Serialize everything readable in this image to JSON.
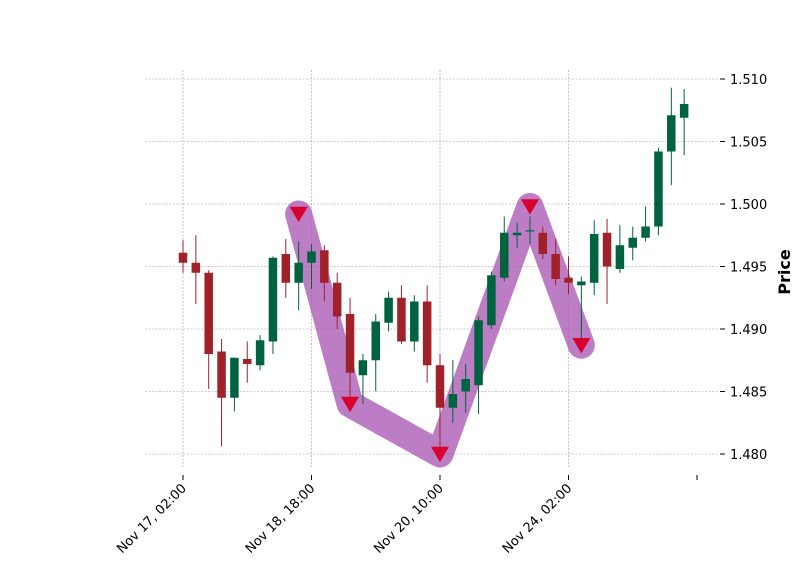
{
  "chart_data": {
    "type": "candlestick",
    "ylabel": "Price",
    "ylim": [
      1.4785,
      1.5105
    ],
    "grid": true,
    "y_axis_side": "right",
    "y_ticks": [
      {
        "value": 1.48,
        "label": "1.480"
      },
      {
        "value": 1.485,
        "label": "1.485"
      },
      {
        "value": 1.49,
        "label": "1.490"
      },
      {
        "value": 1.495,
        "label": "1.495"
      },
      {
        "value": 1.5,
        "label": "1.500"
      },
      {
        "value": 1.505,
        "label": "1.505"
      },
      {
        "value": 1.51,
        "label": "1.510"
      }
    ],
    "x_ticks": [
      {
        "index": 0,
        "label": "Nov 17, 02:00"
      },
      {
        "index": 10,
        "label": "Nov 18, 18:00"
      },
      {
        "index": 20,
        "label": "Nov 20, 10:00"
      },
      {
        "index": 30,
        "label": "Nov 24, 02:00"
      },
      {
        "index": 40,
        "label": ""
      }
    ],
    "colors": {
      "up": "#006340",
      "down": "#A02128",
      "band": "#A552B2",
      "marker": "#D8002C",
      "grid": "#999999"
    },
    "candles": [
      {
        "o": 1.4961,
        "h": 1.4971,
        "l": 1.4945,
        "c": 1.4953
      },
      {
        "o": 1.4953,
        "h": 1.4975,
        "l": 1.492,
        "c": 1.4945
      },
      {
        "o": 1.4945,
        "h": 1.4947,
        "l": 1.4852,
        "c": 1.488
      },
      {
        "o": 1.4882,
        "h": 1.4892,
        "l": 1.4806,
        "c": 1.4845
      },
      {
        "o": 1.4845,
        "h": 1.4877,
        "l": 1.4834,
        "c": 1.4877
      },
      {
        "o": 1.4876,
        "h": 1.489,
        "l": 1.4857,
        "c": 1.4872
      },
      {
        "o": 1.4871,
        "h": 1.4895,
        "l": 1.4867,
        "c": 1.4891
      },
      {
        "o": 1.489,
        "h": 1.4958,
        "l": 1.488,
        "c": 1.4957
      },
      {
        "o": 1.496,
        "h": 1.4972,
        "l": 1.4925,
        "c": 1.4937
      },
      {
        "o": 1.4937,
        "h": 1.497,
        "l": 1.4915,
        "c": 1.4953
      },
      {
        "o": 1.4953,
        "h": 1.4968,
        "l": 1.4932,
        "c": 1.4962
      },
      {
        "o": 1.4963,
        "h": 1.4967,
        "l": 1.4922,
        "c": 1.4937
      },
      {
        "o": 1.4937,
        "h": 1.4945,
        "l": 1.49,
        "c": 1.491
      },
      {
        "o": 1.4912,
        "h": 1.4925,
        "l": 1.4838,
        "c": 1.4865
      },
      {
        "o": 1.4863,
        "h": 1.488,
        "l": 1.484,
        "c": 1.4875
      },
      {
        "o": 1.4875,
        "h": 1.4912,
        "l": 1.485,
        "c": 1.4906
      },
      {
        "o": 1.4905,
        "h": 1.493,
        "l": 1.4898,
        "c": 1.4925
      },
      {
        "o": 1.4925,
        "h": 1.4935,
        "l": 1.4888,
        "c": 1.489
      },
      {
        "o": 1.489,
        "h": 1.4927,
        "l": 1.4882,
        "c": 1.4922
      },
      {
        "o": 1.4922,
        "h": 1.4935,
        "l": 1.4857,
        "c": 1.4871
      },
      {
        "o": 1.4871,
        "h": 1.488,
        "l": 1.48,
        "c": 1.4837
      },
      {
        "o": 1.4837,
        "h": 1.4875,
        "l": 1.4825,
        "c": 1.4848
      },
      {
        "o": 1.485,
        "h": 1.4872,
        "l": 1.4833,
        "c": 1.486
      },
      {
        "o": 1.4855,
        "h": 1.491,
        "l": 1.4832,
        "c": 1.4907
      },
      {
        "o": 1.4903,
        "h": 1.4946,
        "l": 1.49,
        "c": 1.4943
      },
      {
        "o": 1.4941,
        "h": 1.499,
        "l": 1.4938,
        "c": 1.4977
      },
      {
        "o": 1.4975,
        "h": 1.4985,
        "l": 1.4965,
        "c": 1.4977
      },
      {
        "o": 1.4979,
        "h": 1.499,
        "l": 1.4968,
        "c": 1.4979
      },
      {
        "o": 1.4977,
        "h": 1.4982,
        "l": 1.4956,
        "c": 1.496
      },
      {
        "o": 1.496,
        "h": 1.4972,
        "l": 1.4935,
        "c": 1.494
      },
      {
        "o": 1.4941,
        "h": 1.4958,
        "l": 1.4928,
        "c": 1.4937
      },
      {
        "o": 1.4935,
        "h": 1.4942,
        "l": 1.4888,
        "c": 1.4938
      },
      {
        "o": 1.4937,
        "h": 1.4987,
        "l": 1.4927,
        "c": 1.4976
      },
      {
        "o": 1.4977,
        "h": 1.4988,
        "l": 1.492,
        "c": 1.495
      },
      {
        "o": 1.4948,
        "h": 1.4983,
        "l": 1.4945,
        "c": 1.4967
      },
      {
        "o": 1.4965,
        "h": 1.4982,
        "l": 1.4955,
        "c": 1.4973
      },
      {
        "o": 1.4973,
        "h": 1.4998,
        "l": 1.497,
        "c": 1.4982
      },
      {
        "o": 1.4982,
        "h": 1.5045,
        "l": 1.4975,
        "c": 1.5042
      },
      {
        "o": 1.5042,
        "h": 1.5093,
        "l": 1.5015,
        "c": 1.5071
      },
      {
        "o": 1.5069,
        "h": 1.5092,
        "l": 1.5039,
        "c": 1.508
      }
    ],
    "zigzag": [
      {
        "index": 9,
        "value": 1.4992
      },
      {
        "index": 13,
        "value": 1.484
      },
      {
        "index": 20,
        "value": 1.48
      },
      {
        "index": 27,
        "value": 1.4998
      },
      {
        "index": 31,
        "value": 1.4887
      }
    ],
    "markers": [
      {
        "index": 9,
        "value": 1.4992
      },
      {
        "index": 13,
        "value": 1.484
      },
      {
        "index": 20,
        "value": 1.48
      },
      {
        "index": 27,
        "value": 1.4998
      },
      {
        "index": 31,
        "value": 1.4887
      }
    ]
  }
}
